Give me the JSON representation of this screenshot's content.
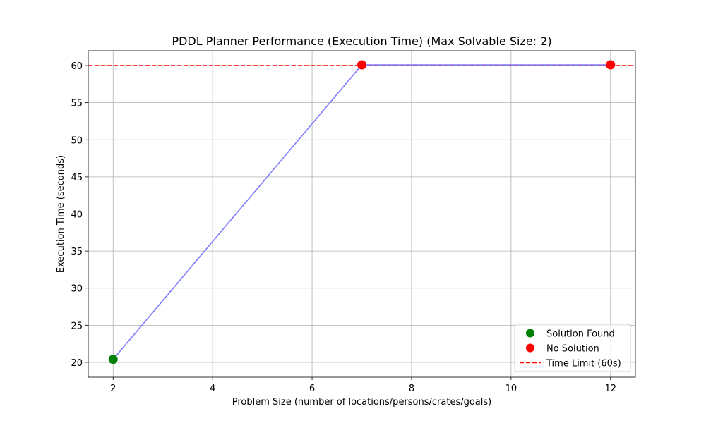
{
  "chart_data": {
    "type": "scatter",
    "title": "PDDL Planner Performance (Execution Time) (Max Solvable Size: 2)",
    "xlabel": "Problem Size (number of locations/persons/crates/goals)",
    "ylabel": "Execution Time (seconds)",
    "xlim": [
      1.5,
      12.5
    ],
    "ylim": [
      18.0,
      62.0
    ],
    "xticks": [
      2,
      4,
      6,
      8,
      10,
      12
    ],
    "yticks": [
      20,
      25,
      30,
      35,
      40,
      45,
      50,
      55,
      60
    ],
    "grid": true,
    "legend_position": "lower-right",
    "line": {
      "color": "#7b7bff",
      "x": [
        2,
        7,
        12
      ],
      "y": [
        20.4,
        60.1,
        60.1
      ]
    },
    "series": [
      {
        "name": "Solution Found",
        "color": "#008000",
        "x": [
          2
        ],
        "y": [
          20.4
        ]
      },
      {
        "name": "No Solution",
        "color": "#ff0000",
        "x": [
          7,
          12
        ],
        "y": [
          60.1,
          60.1
        ]
      }
    ],
    "reference_line": {
      "name": "Time Limit (60s)",
      "y": 60,
      "color": "#ff0000",
      "style": "dashed"
    }
  }
}
